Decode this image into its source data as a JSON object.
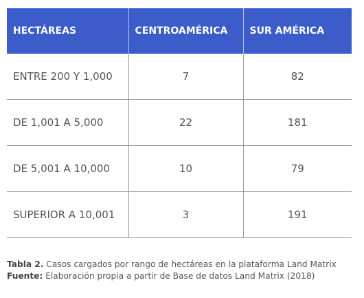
{
  "table": {
    "header": [
      "HECTÁREAS",
      "CENTROAMÉRICA",
      "SUR AMÉRICA"
    ],
    "rows": [
      [
        "ENTRE 200 Y 1,000",
        7,
        82
      ],
      [
        "DE 1,001 A 5,000",
        22,
        181
      ],
      [
        "DE 5,001 A 10,000",
        10,
        79
      ],
      [
        "SUPERIOR A 10,001",
        3,
        191
      ]
    ]
  },
  "caption": [
    {
      "label": "Tabla 2.",
      "text": "Casos cargados por rango de hectáreas en la plataforma Land Matrix"
    },
    {
      "label": "Fuente:",
      "text": "Elaboración propia a partir de Base de datos Land Matrix (2018)"
    }
  ]
}
